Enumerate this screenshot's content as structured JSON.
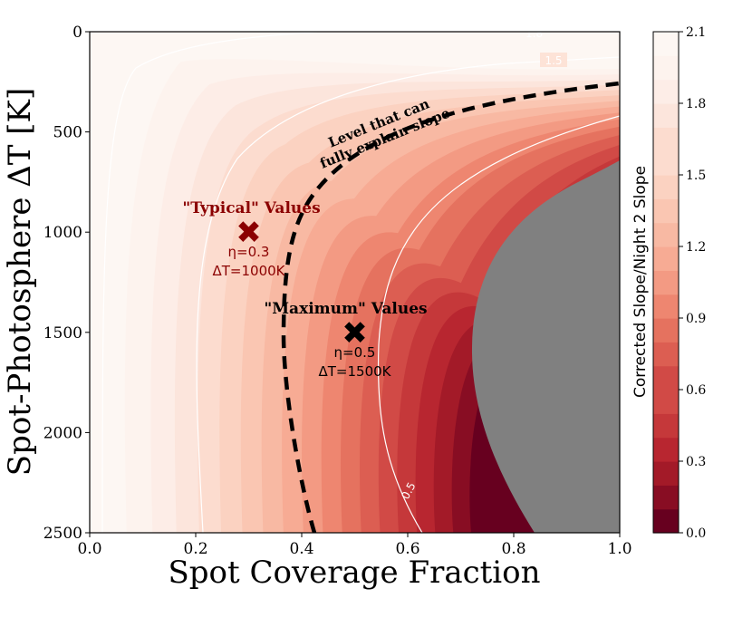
{
  "chart_data": {
    "type": "contourf",
    "xlabel": "Spot Coverage Fraction",
    "ylabel": "Spot-Photosphere ΔT [K]",
    "xlim": [
      0.0,
      1.0
    ],
    "ylim": [
      0,
      2500
    ],
    "y_inverted": true,
    "xticks": [
      "0.0",
      "0.2",
      "0.4",
      "0.6",
      "0.8",
      "1.0"
    ],
    "yticks": [
      "0",
      "500",
      "1000",
      "1500",
      "2000",
      "2500"
    ],
    "colorbar": {
      "label": "Corrected Slope/Night 2 Slope",
      "min": 0.0,
      "max": 2.1,
      "levels": 21,
      "ticks": [
        "0.0",
        "0.3",
        "0.6",
        "0.9",
        "1.2",
        "1.5",
        "1.8",
        "2.1"
      ],
      "colors": [
        "#67001f",
        "#880d23",
        "#a31a28",
        "#b82630",
        "#c5383a",
        "#d14a46",
        "#dc5e52",
        "#e5725f",
        "#ee8670",
        "#f39a83",
        "#f7ab94",
        "#f8b9a3",
        "#fac6b2",
        "#fbd2c1",
        "#fcdccf",
        "#fce5dc",
        "#fdede7",
        "#fdf3ee",
        "#fdf7f3"
      ],
      "undefined_region_color": "#808080"
    },
    "contour_lines": [
      {
        "level": "0.5",
        "label": "0.5"
      },
      {
        "level": "1.5",
        "label": "1.5"
      },
      {
        "level": "1.8",
        "label": "1.8"
      }
    ],
    "threshold_curve": {
      "label_line1": "Level that can",
      "label_line2": "fully explain slope"
    },
    "markers": [
      {
        "name": "typical",
        "x": 0.3,
        "y": 1000,
        "color": "#8b0000",
        "title": "\"Typical\" Values",
        "eta": "η=0.3",
        "dt": "ΔT=1000K"
      },
      {
        "name": "maximum",
        "x": 0.5,
        "y": 1500,
        "color": "#000000",
        "title": "\"Maximum\" Values",
        "eta": "η=0.5",
        "dt": "ΔT=1500K"
      }
    ]
  }
}
